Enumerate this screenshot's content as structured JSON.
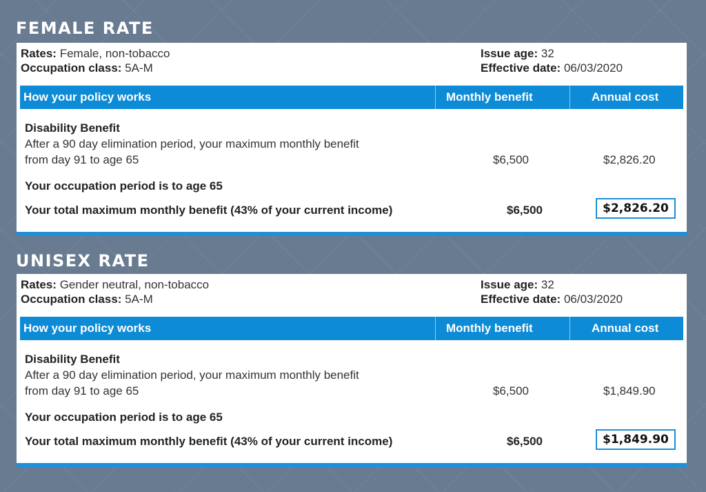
{
  "sections": [
    {
      "heading": "FEMALE RATE",
      "rates_label": "Rates:",
      "rates_value": "Female, non-tobacco",
      "occupation_label": "Occupation class:",
      "occupation_value": "5A-M",
      "issue_age_label": "Issue age:",
      "issue_age_value": "32",
      "effective_label": "Effective date:",
      "effective_value": "06/03/2020",
      "header": {
        "policy": "How your policy works",
        "monthly": "Monthly benefit",
        "annual": "Annual cost"
      },
      "benefit_title": "Disability Benefit",
      "benefit_desc_1": "After a 90 day elimination period, your maximum monthly benefit",
      "benefit_desc_2": "from day 91 to age 65",
      "benefit_monthly": "$6,500",
      "benefit_annual": "$2,826.20",
      "occupation_period": "Your occupation period is to age 65",
      "total_label": "Your total maximum monthly benefit (43% of your current income)",
      "total_monthly": "$6,500",
      "total_annual": "$2,826.20"
    },
    {
      "heading": "UNISEX RATE",
      "rates_label": "Rates:",
      "rates_value": "Gender neutral, non-tobacco",
      "occupation_label": "Occupation class:",
      "occupation_value": "5A-M",
      "issue_age_label": "Issue age:",
      "issue_age_value": "32",
      "effective_label": "Effective date:",
      "effective_value": "06/03/2020",
      "header": {
        "policy": "How your policy works",
        "monthly": "Monthly benefit",
        "annual": "Annual cost"
      },
      "benefit_title": "Disability Benefit",
      "benefit_desc_1": "After a 90 day elimination period, your maximum monthly benefit",
      "benefit_desc_2": "from day 91 to age 65",
      "benefit_monthly": "$6,500",
      "benefit_annual": "$1,849.90",
      "occupation_period": "Your occupation period is to age 65",
      "total_label": "Your total maximum monthly benefit (43% of your current income)",
      "total_monthly": "$6,500",
      "total_annual": "$1,849.90"
    }
  ],
  "colors": {
    "background": "#687b90",
    "accent": "#0d8bd6",
    "highlight_border": "#1f8fd9"
  }
}
